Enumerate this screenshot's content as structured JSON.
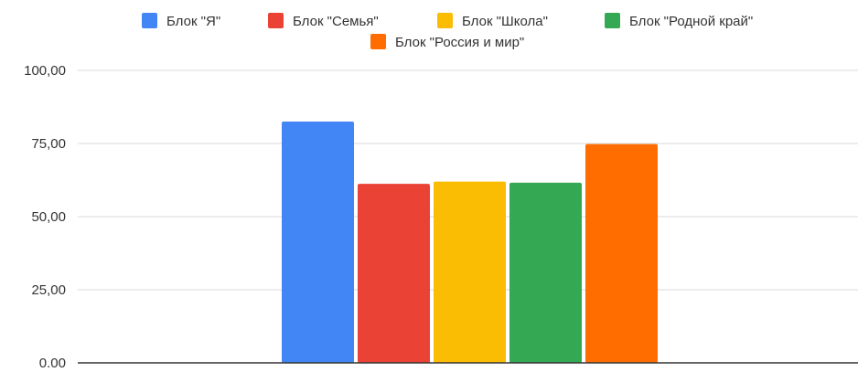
{
  "chart_data": {
    "type": "bar",
    "categories": [
      ""
    ],
    "series": [
      {
        "name": "Блок \"Я\"",
        "values": [
          82.5
        ],
        "color": "#4285F4"
      },
      {
        "name": "Блок \"Семья\"",
        "values": [
          61.2
        ],
        "color": "#EA4335"
      },
      {
        "name": "Блок \"Школа\"",
        "values": [
          62.0
        ],
        "color": "#FBBC04"
      },
      {
        "name": "Блок \"Родной край\"",
        "values": [
          61.6
        ],
        "color": "#34A853"
      },
      {
        "name": "Блок \"Россия и мир\"",
        "values": [
          74.8
        ],
        "color": "#FF6D01"
      }
    ],
    "ylim": [
      0,
      100
    ],
    "yticks": [
      {
        "value": 0,
        "label": "0.00"
      },
      {
        "value": 25,
        "label": "25,00"
      },
      {
        "value": 50,
        "label": "50,00"
      },
      {
        "value": 75,
        "label": "75,00"
      },
      {
        "value": 100,
        "label": "100,00"
      }
    ],
    "grid": true,
    "legend_position": "top"
  }
}
